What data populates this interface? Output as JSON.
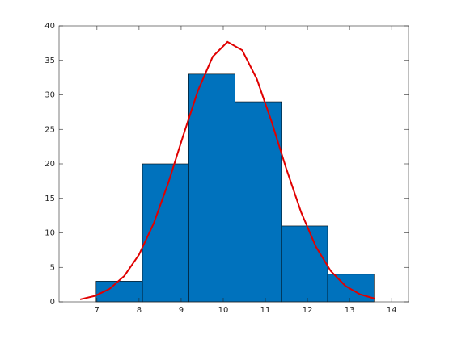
{
  "chart_data": {
    "type": "histogram",
    "bins": [
      6.98,
      8.08,
      9.18,
      10.28,
      11.38,
      12.48,
      13.58
    ],
    "values": [
      3,
      20,
      33,
      29,
      11,
      4
    ],
    "color": "#0072bd",
    "xlim": [
      6.1,
      14.4
    ],
    "xticks": [
      7,
      8,
      9,
      10,
      11,
      12,
      13,
      14
    ],
    "ylim": [
      0,
      40
    ],
    "yticks": [
      0,
      5,
      10,
      15,
      20,
      25,
      30,
      35,
      40
    ],
    "fit": {
      "type": "line",
      "color": "#e00000",
      "x": [
        6.6,
        6.95,
        7.3,
        7.65,
        8.0,
        8.35,
        8.7,
        9.05,
        9.4,
        9.75,
        10.1,
        10.45,
        10.8,
        11.15,
        11.5,
        11.85,
        12.2,
        12.55,
        12.9,
        13.25,
        13.6
      ],
      "values": [
        0.36,
        0.86,
        1.88,
        3.76,
        6.85,
        11.4,
        17.35,
        24.12,
        30.63,
        35.54,
        37.67,
        36.47,
        32.26,
        26.07,
        19.24,
        12.98,
        8.0,
        4.5,
        2.31,
        1.09,
        0.47
      ]
    }
  }
}
